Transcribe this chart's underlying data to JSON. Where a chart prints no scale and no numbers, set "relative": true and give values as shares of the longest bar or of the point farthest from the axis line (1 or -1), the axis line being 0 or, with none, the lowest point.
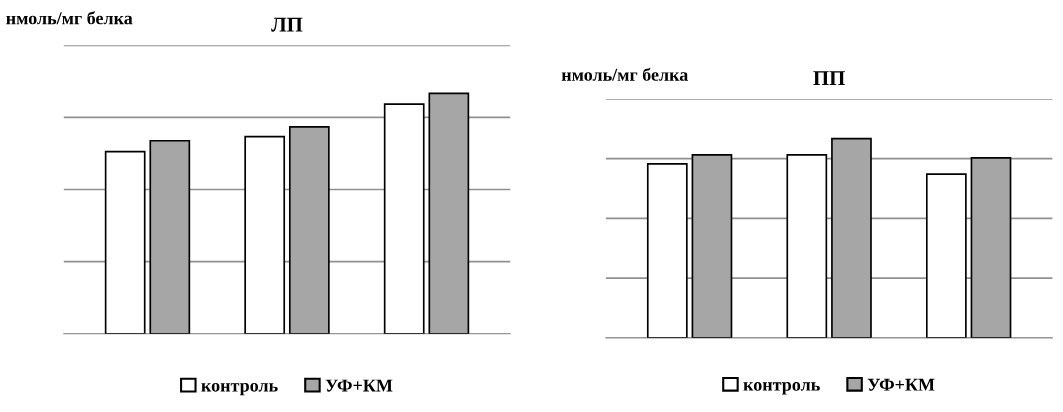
{
  "chart_data": [
    {
      "type": "bar",
      "title": "ЛП",
      "ylabel": "нмоль/мг белка",
      "categories": [
        null,
        null,
        null
      ],
      "relative": true,
      "grid": "y",
      "legend": "bottom",
      "series": [
        {
          "name": "контроль",
          "color": "#ffffff",
          "values": [
            0.758,
            0.82,
            0.955
          ]
        },
        {
          "name": "УФ+КМ",
          "color": "#a6a6a6",
          "values": [
            0.803,
            0.861,
            1
          ]
        }
      ]
    },
    {
      "type": "bar",
      "title": "ПП",
      "ylabel": "нмоль/мг белка",
      "categories": [
        null,
        null,
        null
      ],
      "relative": true,
      "grid": "y",
      "legend": "bottom",
      "series": [
        {
          "name": "контроль",
          "color": "#ffffff",
          "values": [
            0.874,
            0.919,
            0.822
          ]
        },
        {
          "name": "УФ+КМ",
          "color": "#a6a6a6",
          "values": [
            0.919,
            1,
            0.904
          ]
        }
      ]
    }
  ]
}
